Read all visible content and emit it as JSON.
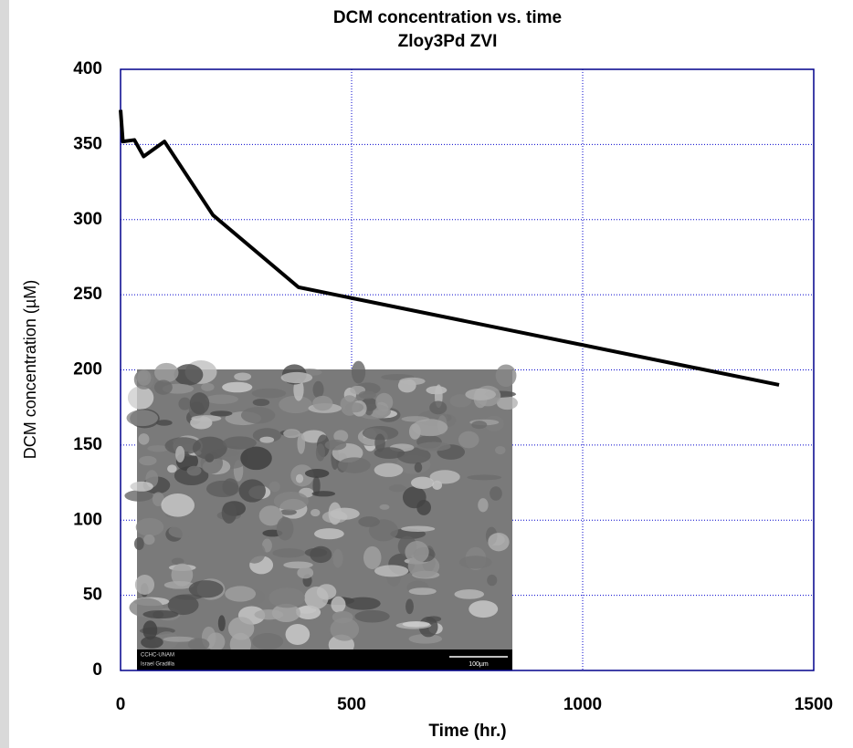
{
  "chart_data": {
    "type": "line",
    "title": "DCM concentration vs. time",
    "subtitle": "Zloy3Pd ZVI",
    "x_label": "Time (hr.)",
    "y_label": "DCM concentration (µM)",
    "x": [
      0,
      5,
      30,
      50,
      95,
      200,
      385,
      1425
    ],
    "values": [
      373,
      352,
      353,
      342,
      352,
      303,
      255,
      190
    ],
    "color": "#000000",
    "xlim": [
      0,
      1500
    ],
    "xticks": [
      0,
      500,
      1000,
      1500
    ],
    "ylim": [
      0,
      400
    ],
    "yticks": [
      0,
      50,
      100,
      150,
      200,
      250,
      300,
      350,
      400
    ],
    "grid": true,
    "inset": {
      "caption_left_1": "CCHC-UNAM",
      "caption_left_2": "Israel Gradilla",
      "scale_bar": "100µm"
    }
  }
}
